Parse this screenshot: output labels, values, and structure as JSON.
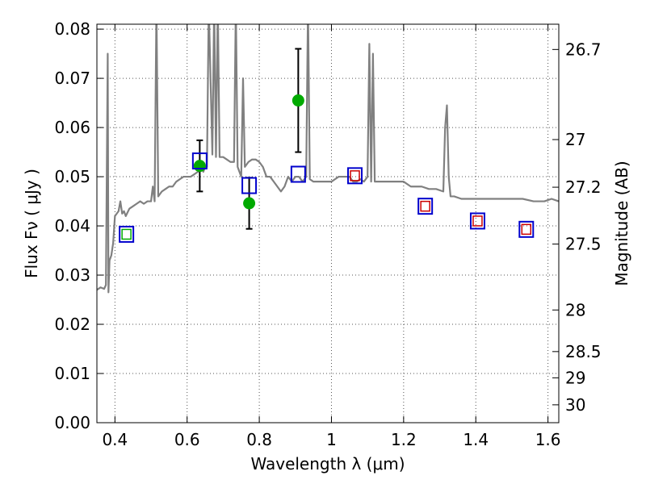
{
  "chart_data": {
    "type": "line",
    "xlabel": "Wavelength  λ (μm)",
    "ylabel": "Flux  Fν  ( μJy )",
    "y2label": "Magnitude (AB)",
    "xlim": [
      0.35,
      1.63
    ],
    "ylim": [
      0.0,
      0.081
    ],
    "grid": true,
    "x_ticks": [
      0.4,
      0.6,
      0.8,
      1.0,
      1.2,
      1.4,
      1.6
    ],
    "x_tick_labels": [
      "0.4",
      "0.6",
      "0.8",
      "1",
      "1.2",
      "1.4",
      "1.6"
    ],
    "y_ticks": [
      0.0,
      0.01,
      0.02,
      0.03,
      0.04,
      0.05,
      0.06,
      0.07,
      0.08
    ],
    "y_tick_labels": [
      "0.00",
      "0.01",
      "0.02",
      "0.03",
      "0.04",
      "0.05",
      "0.06",
      "0.07",
      "0.08"
    ],
    "y2_ticks": [
      26.7,
      27.0,
      27.2,
      27.5,
      28.0,
      28.5,
      29.0,
      30.0
    ],
    "y2_tick_labels": [
      "26.7",
      "27",
      "27.2",
      "27.5",
      "28",
      "28.5",
      "29",
      "30"
    ],
    "colors": {
      "model": "#808080",
      "observed": "#00aa00",
      "error_bar": "#000000",
      "model_photometry": "#0000cc",
      "inner_photometry": "#cc0000"
    },
    "series": [
      {
        "type": "line",
        "x": [
          0.35,
          0.36,
          0.37,
          0.375,
          0.38,
          0.382,
          0.385,
          0.39,
          0.395,
          0.4,
          0.41,
          0.415,
          0.42,
          0.425,
          0.43,
          0.44,
          0.45,
          0.46,
          0.47,
          0.48,
          0.49,
          0.5,
          0.505,
          0.51,
          0.515,
          0.52,
          0.525,
          0.53,
          0.54,
          0.55,
          0.56,
          0.57,
          0.58,
          0.59,
          0.6,
          0.61,
          0.62,
          0.63,
          0.64,
          0.645,
          0.65,
          0.655,
          0.66,
          0.67,
          0.675,
          0.68,
          0.685,
          0.69,
          0.695,
          0.7,
          0.71,
          0.72,
          0.73,
          0.735,
          0.74,
          0.75,
          0.755,
          0.76,
          0.77,
          0.78,
          0.79,
          0.8,
          0.81,
          0.82,
          0.83,
          0.84,
          0.85,
          0.86,
          0.87,
          0.88,
          0.89,
          0.9,
          0.91,
          0.92,
          0.93,
          0.935,
          0.94,
          0.95,
          0.96,
          0.97,
          0.98,
          0.99,
          1.0,
          1.01,
          1.02,
          1.03,
          1.04,
          1.05,
          1.06,
          1.07,
          1.08,
          1.09,
          1.1,
          1.105,
          1.11,
          1.115,
          1.12,
          1.13,
          1.15,
          1.17,
          1.2,
          1.22,
          1.25,
          1.27,
          1.29,
          1.31,
          1.315,
          1.32,
          1.325,
          1.33,
          1.34,
          1.36,
          1.38,
          1.4,
          1.42,
          1.45,
          1.48,
          1.5,
          1.53,
          1.56,
          1.59,
          1.61,
          1.63
        ],
        "y": [
          0.027,
          0.0275,
          0.0272,
          0.028,
          0.075,
          0.0265,
          0.033,
          0.034,
          0.0365,
          0.042,
          0.043,
          0.045,
          0.0425,
          0.043,
          0.042,
          0.0435,
          0.044,
          0.0445,
          0.045,
          0.0445,
          0.045,
          0.045,
          0.048,
          0.045,
          0.085,
          0.046,
          0.0465,
          0.047,
          0.0475,
          0.048,
          0.048,
          0.049,
          0.0495,
          0.05,
          0.05,
          0.05,
          0.0505,
          0.051,
          0.052,
          0.051,
          0.052,
          0.052,
          0.085,
          0.0545,
          0.085,
          0.054,
          0.085,
          0.054,
          0.054,
          0.054,
          0.0535,
          0.053,
          0.053,
          0.085,
          0.052,
          0.05,
          0.07,
          0.052,
          0.053,
          0.0535,
          0.0535,
          0.053,
          0.052,
          0.05,
          0.05,
          0.049,
          0.048,
          0.047,
          0.048,
          0.05,
          0.049,
          0.05,
          0.05,
          0.049,
          0.05,
          0.085,
          0.0495,
          0.049,
          0.049,
          0.049,
          0.049,
          0.049,
          0.049,
          0.0495,
          0.05,
          0.05,
          0.05,
          0.05,
          0.049,
          0.049,
          0.0495,
          0.049,
          0.05,
          0.077,
          0.049,
          0.075,
          0.049,
          0.049,
          0.049,
          0.049,
          0.049,
          0.048,
          0.048,
          0.0475,
          0.0475,
          0.047,
          0.06,
          0.0645,
          0.05,
          0.046,
          0.046,
          0.0455,
          0.0455,
          0.0455,
          0.0455,
          0.0455,
          0.0455,
          0.0455,
          0.0455,
          0.045,
          0.045,
          0.0455,
          0.045
        ]
      },
      {
        "type": "scatter",
        "x": [
          0.635,
          0.772,
          0.908
        ],
        "y": [
          0.0522,
          0.0446,
          0.0655
        ],
        "yerr": [
          0.0052,
          0.0052,
          0.0105
        ]
      },
      {
        "type": "scatter",
        "x": [
          0.432,
          0.635,
          0.772,
          0.908,
          1.065,
          1.26,
          1.405,
          1.54
        ],
        "y": [
          0.0383,
          0.0532,
          0.0482,
          0.0505,
          0.0502,
          0.044,
          0.041,
          0.0393
        ]
      },
      {
        "type": "scatter",
        "x": [
          0.432,
          1.065,
          1.26,
          1.405,
          1.54
        ],
        "y": [
          0.0383,
          0.0502,
          0.044,
          0.041,
          0.0393
        ]
      }
    ]
  }
}
